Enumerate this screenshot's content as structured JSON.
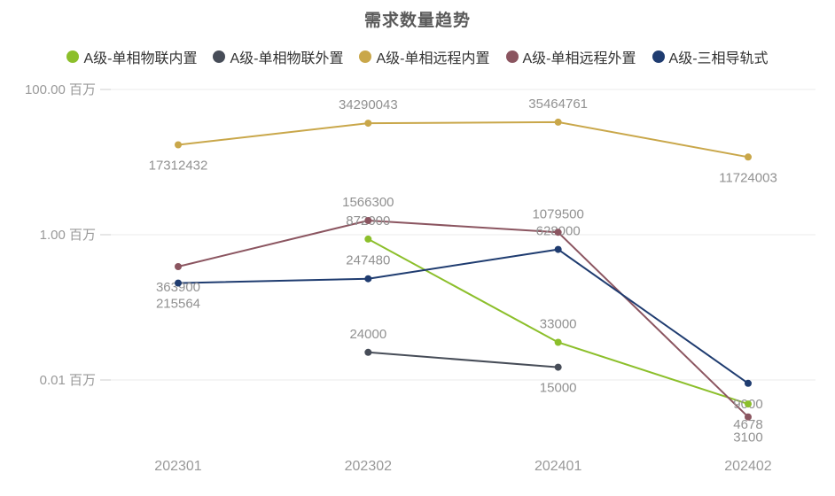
{
  "title": "需求数量趋势",
  "colors": {
    "background": "#ffffff",
    "title_text": "#5a5a5a",
    "legend_text": "#333333",
    "axis_text": "#999999",
    "value_text": "#919191",
    "grid": "#ebebeb",
    "tick": "#cccccc"
  },
  "chart_data": {
    "type": "line",
    "title": "需求数量趋势",
    "x_categories": [
      "202301",
      "202302",
      "202401",
      "202402"
    ],
    "y_axis": {
      "scale": "log",
      "unit": "百万",
      "ticks": [
        {
          "label": "100.00 百万",
          "value": 100
        },
        {
          "label": "1.00 百万",
          "value": 1
        },
        {
          "label": "0.01 百万",
          "value": 0.01
        }
      ]
    },
    "grid": true,
    "legend_position": "top",
    "series": [
      {
        "name": "A级-单相物联内置",
        "color": "#8cbf2b",
        "points": [
          {
            "x": "202302",
            "value": 872000,
            "label_pos": "above"
          },
          {
            "x": "202401",
            "value": 33000,
            "label_pos": "above"
          },
          {
            "x": "202402",
            "value": 4678,
            "label_pos": "below"
          }
        ]
      },
      {
        "name": "A级-单相物联外置",
        "color": "#474d58",
        "points": [
          {
            "x": "202302",
            "value": 24000,
            "label_pos": "above"
          },
          {
            "x": "202401",
            "value": 15000,
            "label_pos": "below"
          }
        ]
      },
      {
        "name": "A级-单相远程内置",
        "color": "#c9a74a",
        "points": [
          {
            "x": "202301",
            "value": 17312432,
            "label_pos": "below"
          },
          {
            "x": "202302",
            "value": 34290043,
            "label_pos": "above"
          },
          {
            "x": "202401",
            "value": 35464761,
            "label_pos": "above"
          },
          {
            "x": "202402",
            "value": 11724003,
            "label_pos": "below"
          }
        ]
      },
      {
        "name": "A级-单相远程外置",
        "color": "#8b5560",
        "points": [
          {
            "x": "202301",
            "value": 363900,
            "label_pos": "below"
          },
          {
            "x": "202302",
            "value": 1566300,
            "label_pos": "above"
          },
          {
            "x": "202401",
            "value": 1079500,
            "label_pos": "above"
          },
          {
            "x": "202402",
            "value": 3100,
            "label_pos": "below"
          }
        ]
      },
      {
        "name": "A级-三相导轨式",
        "color": "#1f3c70",
        "points": [
          {
            "x": "202301",
            "value": 215564,
            "label_pos": "below"
          },
          {
            "x": "202302",
            "value": 247480,
            "label_pos": "above"
          },
          {
            "x": "202401",
            "value": 628000,
            "label_pos": "above"
          },
          {
            "x": "202402",
            "value": 9000,
            "label_pos": "below"
          }
        ]
      }
    ]
  }
}
